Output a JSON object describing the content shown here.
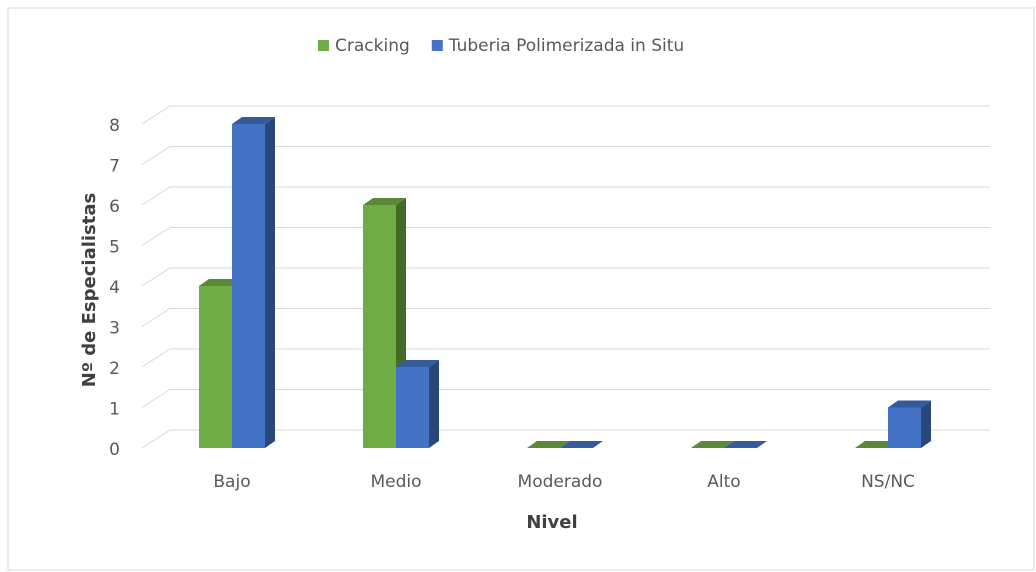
{
  "chart_data": {
    "type": "bar3d",
    "categories": [
      "Bajo",
      "Medio",
      "Moderado",
      "Alto",
      "NS/NC"
    ],
    "series": [
      {
        "name": "Cracking",
        "color": "#70ad47",
        "values": [
          4,
          6,
          0,
          0,
          0
        ]
      },
      {
        "name": "Tuberia Polimerizada in Situ",
        "color": "#4472c4",
        "values": [
          8,
          2,
          0,
          0,
          1
        ]
      }
    ],
    "ylabel": "Nº de Especialistas",
    "xlabel": "Nivel",
    "ylim": [
      0,
      8
    ],
    "yticks": [
      0,
      1,
      2,
      3,
      4,
      5,
      6,
      7,
      8
    ],
    "grid": true,
    "legend": "top"
  }
}
